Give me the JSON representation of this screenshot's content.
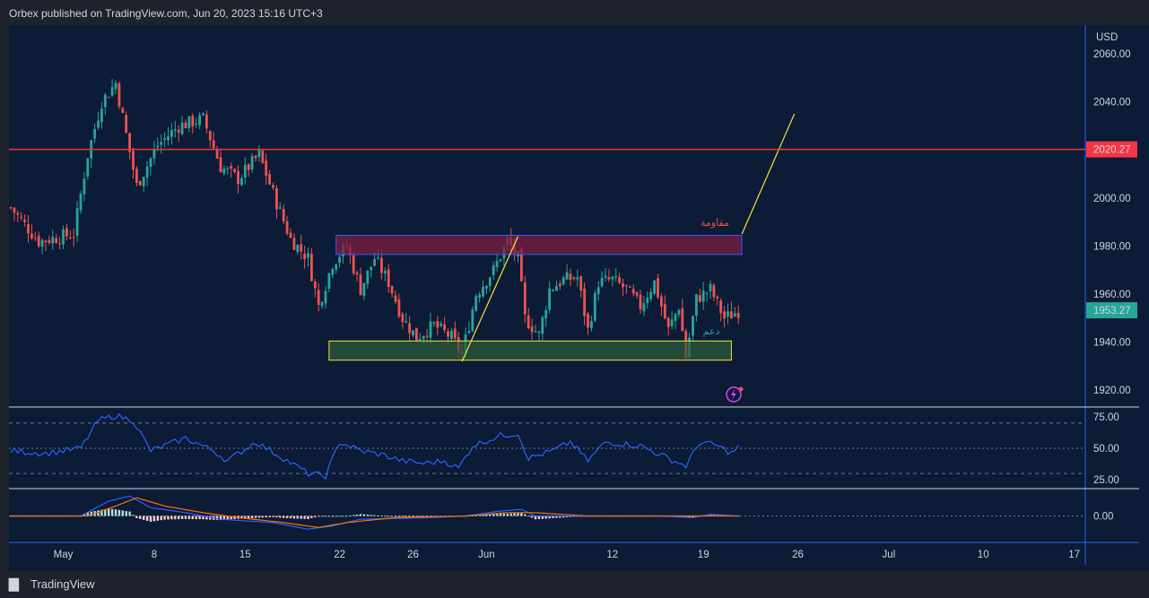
{
  "header": {
    "publisher_text": "Orbex published on TradingView.com, Jun 20, 2023 15:16 UTC+3"
  },
  "footer": {
    "brand": "TradingView",
    "logo": "tradingview-logo-icon"
  },
  "colors": {
    "background": "#0c1b36",
    "up": "#26a69a",
    "down": "#ef5350",
    "resistance_line": "#f23645",
    "rsi_line": "#2962ff",
    "macd_line": "#2962ff",
    "signal_line": "#ff6d00",
    "trend_line": "#f5e33a",
    "resistance_zone": "#7b1e3f",
    "support_zone": "#2e5d3a"
  },
  "annotations": {
    "resistance_label": "مقاومة",
    "support_label": "دعم",
    "resistance_price_label": "2020.27",
    "last_price_label": "1953.27",
    "alert_icon": "lightning-alert-icon"
  },
  "chart_data": [
    {
      "type": "candlestick",
      "panel": "price",
      "currency": "USD",
      "y_ticks": [
        "2060.00",
        "2040.00",
        "2020.00",
        "2000.00",
        "1980.00",
        "1960.00",
        "1940.00",
        "1920.00"
      ],
      "x_ticks": [
        "May",
        "8",
        "15",
        "22",
        "26",
        "Jun",
        "12",
        "19",
        "26",
        "Jul",
        "10",
        "17"
      ],
      "ylim": [
        1913,
        2072
      ],
      "anchors": [
        {
          "i": 0,
          "p": 1996
        },
        {
          "i": 8,
          "p": 1982
        },
        {
          "i": 18,
          "p": 1985
        },
        {
          "i": 22,
          "p": 2018
        },
        {
          "i": 26,
          "p": 2040
        },
        {
          "i": 30,
          "p": 2048
        },
        {
          "i": 36,
          "p": 2005
        },
        {
          "i": 42,
          "p": 2022
        },
        {
          "i": 48,
          "p": 2030
        },
        {
          "i": 55,
          "p": 2033
        },
        {
          "i": 60,
          "p": 2013
        },
        {
          "i": 65,
          "p": 2008
        },
        {
          "i": 71,
          "p": 2018
        },
        {
          "i": 76,
          "p": 1998
        },
        {
          "i": 80,
          "p": 1983
        },
        {
          "i": 85,
          "p": 1975
        },
        {
          "i": 88,
          "p": 1955
        },
        {
          "i": 92,
          "p": 1973
        },
        {
          "i": 96,
          "p": 1980
        },
        {
          "i": 100,
          "p": 1962
        },
        {
          "i": 104,
          "p": 1975
        },
        {
          "i": 108,
          "p": 1965
        },
        {
          "i": 112,
          "p": 1950
        },
        {
          "i": 116,
          "p": 1942
        },
        {
          "i": 121,
          "p": 1947
        },
        {
          "i": 126,
          "p": 1942
        },
        {
          "i": 129,
          "p": 1935
        },
        {
          "i": 133,
          "p": 1960
        },
        {
          "i": 138,
          "p": 1970
        },
        {
          "i": 142,
          "p": 1982
        },
        {
          "i": 145,
          "p": 1975
        },
        {
          "i": 147,
          "p": 1950
        },
        {
          "i": 151,
          "p": 1943
        },
        {
          "i": 154,
          "p": 1962
        },
        {
          "i": 158,
          "p": 1966
        },
        {
          "i": 162,
          "p": 1967
        },
        {
          "i": 165,
          "p": 1945
        },
        {
          "i": 168,
          "p": 1965
        },
        {
          "i": 172,
          "p": 1966
        },
        {
          "i": 176,
          "p": 1962
        },
        {
          "i": 180,
          "p": 1955
        },
        {
          "i": 184,
          "p": 1965
        },
        {
          "i": 188,
          "p": 1945
        },
        {
          "i": 191,
          "p": 1955
        },
        {
          "i": 193,
          "p": 1934
        },
        {
          "i": 196,
          "p": 1958
        },
        {
          "i": 200,
          "p": 1962
        },
        {
          "i": 204,
          "p": 1950
        },
        {
          "i": 208,
          "p": 1953
        }
      ],
      "candle_count": 209,
      "horizontal_line": 2020.27,
      "last_price": 1953.27,
      "resistance_zone": {
        "from_index": 93,
        "to_index": 209,
        "top": 1984.5,
        "bottom": 1976.5
      },
      "support_zone": {
        "from_index": 91,
        "to_index": 206,
        "top": 1940.5,
        "bottom": 1932.5
      },
      "trend_lines": [
        {
          "from": {
            "i": 129,
            "p": 1932
          },
          "to": {
            "i": 145,
            "p": 1984
          }
        },
        {
          "from": {
            "i": 209,
            "p": 1985
          },
          "to": {
            "i": 224,
            "p": 2035
          }
        }
      ]
    },
    {
      "type": "line",
      "panel": "rsi",
      "y_ticks": [
        "75.00",
        "50.00",
        "25.00"
      ],
      "levels": [
        70,
        50,
        30
      ],
      "ylim": [
        18,
        82
      ],
      "series": [
        {
          "values_anchors": [
            {
              "i": 0,
              "v": 48
            },
            {
              "i": 10,
              "v": 46
            },
            {
              "i": 20,
              "v": 50
            },
            {
              "i": 25,
              "v": 72
            },
            {
              "i": 30,
              "v": 76
            },
            {
              "i": 35,
              "v": 72
            },
            {
              "i": 40,
              "v": 48
            },
            {
              "i": 50,
              "v": 58
            },
            {
              "i": 58,
              "v": 48
            },
            {
              "i": 62,
              "v": 40
            },
            {
              "i": 70,
              "v": 55
            },
            {
              "i": 78,
              "v": 42
            },
            {
              "i": 85,
              "v": 30
            },
            {
              "i": 90,
              "v": 28
            },
            {
              "i": 94,
              "v": 55
            },
            {
              "i": 100,
              "v": 48
            },
            {
              "i": 106,
              "v": 45
            },
            {
              "i": 112,
              "v": 40
            },
            {
              "i": 118,
              "v": 38
            },
            {
              "i": 124,
              "v": 40
            },
            {
              "i": 128,
              "v": 34
            },
            {
              "i": 132,
              "v": 52
            },
            {
              "i": 140,
              "v": 60
            },
            {
              "i": 145,
              "v": 62
            },
            {
              "i": 148,
              "v": 42
            },
            {
              "i": 155,
              "v": 48
            },
            {
              "i": 160,
              "v": 55
            },
            {
              "i": 165,
              "v": 40
            },
            {
              "i": 170,
              "v": 55
            },
            {
              "i": 180,
              "v": 52
            },
            {
              "i": 188,
              "v": 42
            },
            {
              "i": 193,
              "v": 36
            },
            {
              "i": 197,
              "v": 55
            },
            {
              "i": 202,
              "v": 52
            },
            {
              "i": 206,
              "v": 46
            },
            {
              "i": 208,
              "v": 51
            }
          ]
        }
      ]
    },
    {
      "type": "histogram+line",
      "panel": "macd",
      "y_ticks": [
        "0.00"
      ],
      "ylim": [
        -16,
        16
      ],
      "series": [
        {
          "role": "macd",
          "values_anchors": [
            {
              "i": 0,
              "v": 0
            },
            {
              "i": 20,
              "v": 0
            },
            {
              "i": 28,
              "v": 9
            },
            {
              "i": 34,
              "v": 12
            },
            {
              "i": 40,
              "v": 5
            },
            {
              "i": 50,
              "v": 2
            },
            {
              "i": 60,
              "v": -2
            },
            {
              "i": 75,
              "v": -4
            },
            {
              "i": 85,
              "v": -8
            },
            {
              "i": 92,
              "v": -6
            },
            {
              "i": 100,
              "v": -2
            },
            {
              "i": 120,
              "v": -1
            },
            {
              "i": 130,
              "v": 0
            },
            {
              "i": 140,
              "v": 3
            },
            {
              "i": 146,
              "v": 4
            },
            {
              "i": 150,
              "v": 0
            },
            {
              "i": 165,
              "v": 0
            },
            {
              "i": 185,
              "v": 0
            },
            {
              "i": 195,
              "v": -1
            },
            {
              "i": 200,
              "v": 1
            },
            {
              "i": 208,
              "v": 0
            }
          ]
        },
        {
          "role": "signal",
          "values_anchors": [
            {
              "i": 0,
              "v": 0
            },
            {
              "i": 22,
              "v": 0
            },
            {
              "i": 30,
              "v": 6
            },
            {
              "i": 36,
              "v": 11
            },
            {
              "i": 44,
              "v": 6
            },
            {
              "i": 55,
              "v": 2
            },
            {
              "i": 65,
              "v": -1
            },
            {
              "i": 78,
              "v": -4
            },
            {
              "i": 88,
              "v": -7
            },
            {
              "i": 96,
              "v": -4
            },
            {
              "i": 110,
              "v": -1
            },
            {
              "i": 130,
              "v": 0
            },
            {
              "i": 142,
              "v": 2
            },
            {
              "i": 150,
              "v": 2
            },
            {
              "i": 165,
              "v": 0
            },
            {
              "i": 208,
              "v": 0
            }
          ]
        }
      ]
    }
  ]
}
